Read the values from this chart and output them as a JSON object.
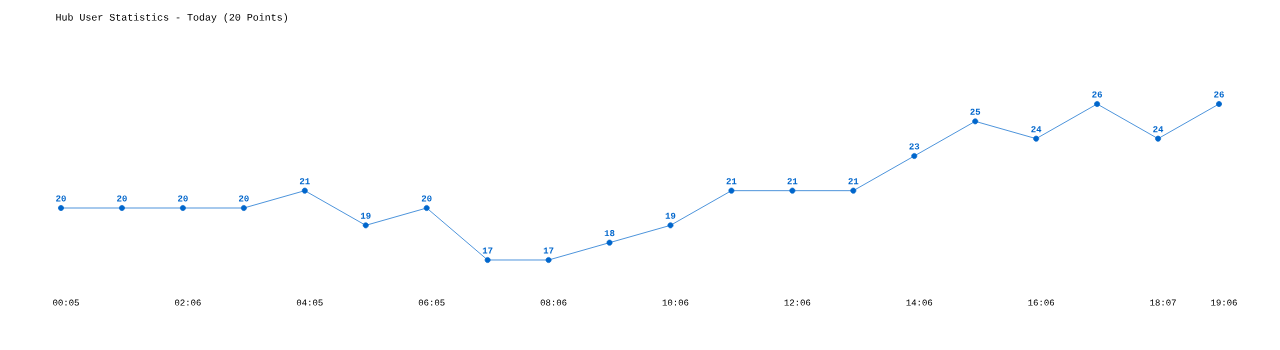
{
  "chart_data": {
    "type": "line",
    "title": "Hub User Statistics - Today (20 Points)",
    "categories": [
      "00:05",
      null,
      "02:06",
      null,
      "04:05",
      null,
      "06:05",
      null,
      "08:06",
      null,
      "10:06",
      null,
      "12:06",
      null,
      "14:06",
      null,
      "16:06",
      null,
      "18:07",
      "19:06"
    ],
    "values": [
      20,
      20,
      20,
      20,
      21,
      19,
      20,
      17,
      17,
      18,
      19,
      21,
      21,
      21,
      23,
      25,
      24,
      26,
      24,
      26
    ],
    "color": "#0066cc",
    "data_labels": true,
    "marker": "circle",
    "tick_labels": "x"
  }
}
